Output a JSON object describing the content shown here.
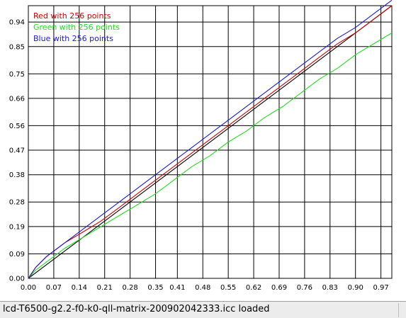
{
  "status": {
    "text": "lcd-T6500-g2.2-f0-k0-qll-matrix-200902042333.icc loaded"
  },
  "chart_data": {
    "type": "line",
    "title": "",
    "xlabel": "",
    "ylabel": "",
    "xlim": [
      0,
      1
    ],
    "ylim": [
      0,
      1
    ],
    "grid": true,
    "legend_position": "top-left",
    "x_ticks": [
      "0.00",
      "0.07",
      "0.14",
      "0.21",
      "0.28",
      "0.35",
      "0.41",
      "0.48",
      "0.55",
      "0.62",
      "0.69",
      "0.76",
      "0.83",
      "0.90",
      "0.97"
    ],
    "y_ticks": [
      "0.00",
      "0.09",
      "0.19",
      "0.28",
      "0.38",
      "0.47",
      "0.56",
      "0.66",
      "0.75",
      "0.85",
      "0.94"
    ],
    "series": [
      {
        "name": "Red with 256 points",
        "color": "#cc0000",
        "x": [
          0,
          0.02,
          0.05,
          0.1,
          0.15,
          0.2,
          0.25,
          0.3,
          0.35,
          0.4,
          0.45,
          0.5,
          0.55,
          0.6,
          0.65,
          0.7,
          0.75,
          0.8,
          0.85,
          0.9,
          0.95,
          1.0
        ],
        "y": [
          0,
          0.04,
          0.08,
          0.13,
          0.17,
          0.21,
          0.26,
          0.31,
          0.36,
          0.41,
          0.46,
          0.51,
          0.56,
          0.61,
          0.66,
          0.71,
          0.76,
          0.81,
          0.86,
          0.9,
          0.95,
          1.0
        ]
      },
      {
        "name": "Green with 256 points",
        "color": "#22dd22",
        "x": [
          0,
          0.02,
          0.05,
          0.1,
          0.15,
          0.2,
          0.25,
          0.3,
          0.35,
          0.4,
          0.45,
          0.5,
          0.55,
          0.6,
          0.65,
          0.7,
          0.75,
          0.8,
          0.85,
          0.9,
          0.95,
          1.0
        ],
        "y": [
          0,
          0.03,
          0.06,
          0.11,
          0.15,
          0.19,
          0.23,
          0.27,
          0.31,
          0.36,
          0.41,
          0.45,
          0.5,
          0.54,
          0.59,
          0.63,
          0.68,
          0.73,
          0.77,
          0.82,
          0.86,
          0.9
        ]
      },
      {
        "name": "Blue with 256 points",
        "color": "#1a1acc",
        "x": [
          0,
          0.02,
          0.05,
          0.1,
          0.15,
          0.2,
          0.25,
          0.3,
          0.35,
          0.4,
          0.45,
          0.5,
          0.55,
          0.6,
          0.65,
          0.7,
          0.75,
          0.8,
          0.85,
          0.9,
          0.95,
          1.0
        ],
        "y": [
          0,
          0.04,
          0.08,
          0.13,
          0.18,
          0.23,
          0.28,
          0.33,
          0.38,
          0.43,
          0.48,
          0.53,
          0.58,
          0.63,
          0.68,
          0.73,
          0.78,
          0.83,
          0.88,
          0.92,
          0.97,
          1.02
        ]
      },
      {
        "name": "",
        "color": "#000000",
        "x": [
          0,
          1.0
        ],
        "y": [
          0,
          1.0
        ]
      }
    ]
  }
}
